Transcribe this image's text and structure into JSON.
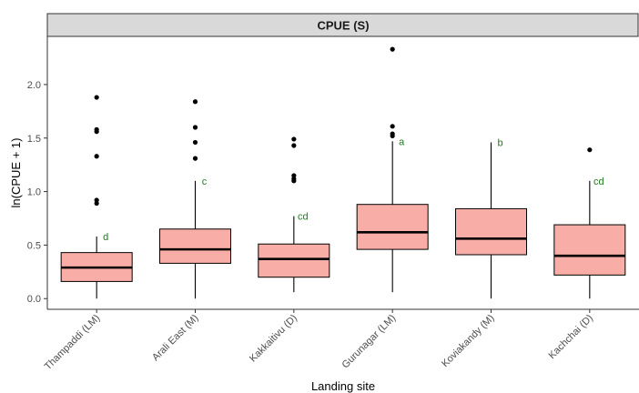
{
  "chart_data": {
    "type": "boxplot",
    "facet_title": "CPUE (S)",
    "xlabel": "Landing site",
    "ylabel": "ln(CPUE + 1)",
    "ylim": [
      -0.1,
      2.45
    ],
    "yticks": [
      "0.0",
      "0.5",
      "1.0",
      "1.5",
      "2.0"
    ],
    "ytick_values": [
      0,
      0.5,
      1.0,
      1.5,
      2.0
    ],
    "grid": false,
    "colors": {
      "box_fill": "#F8ADA6",
      "median": "#000000",
      "letter": "#1F7A1F",
      "strip_bg": "#D9D9D9"
    },
    "categories": [
      {
        "label": "Thampaddi (LM)",
        "whisker_low": 0.0,
        "q1": 0.16,
        "median": 0.29,
        "q3": 0.43,
        "whisker_high": 0.58,
        "outliers": [
          0.89,
          0.92,
          1.33,
          1.56,
          1.58,
          1.88
        ],
        "group": "d"
      },
      {
        "label": "Arali East (M)",
        "whisker_low": 0.0,
        "q1": 0.33,
        "median": 0.46,
        "q3": 0.65,
        "whisker_high": 1.1,
        "outliers": [
          1.31,
          1.46,
          1.6,
          1.84
        ],
        "group": "c"
      },
      {
        "label": "Kakkaitivu (D)",
        "whisker_low": 0.06,
        "q1": 0.2,
        "median": 0.37,
        "q3": 0.51,
        "whisker_high": 0.77,
        "outliers": [
          1.1,
          1.12,
          1.15,
          1.43,
          1.49
        ],
        "group": "cd"
      },
      {
        "label": "Gurunagar (LM)",
        "whisker_low": 0.06,
        "q1": 0.46,
        "median": 0.62,
        "q3": 0.88,
        "whisker_high": 1.47,
        "outliers": [
          1.52,
          1.54,
          1.61,
          2.33
        ],
        "group": "a"
      },
      {
        "label": "Koviakandy (M)",
        "whisker_low": 0.0,
        "q1": 0.41,
        "median": 0.56,
        "q3": 0.84,
        "whisker_high": 1.46,
        "outliers": [],
        "group": "b"
      },
      {
        "label": "Kachchai (D)",
        "whisker_low": 0.0,
        "q1": 0.22,
        "median": 0.4,
        "q3": 0.69,
        "whisker_high": 1.1,
        "outliers": [
          1.39
        ],
        "group": "cd"
      }
    ]
  }
}
